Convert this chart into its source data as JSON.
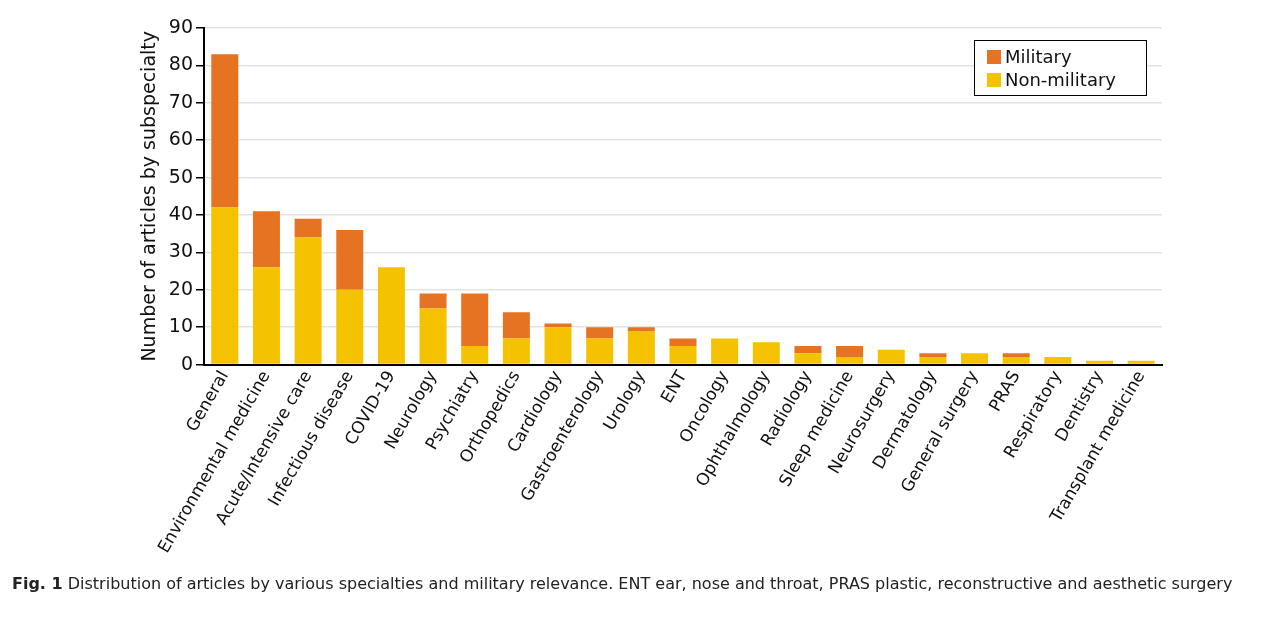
{
  "chart_data": {
    "type": "bar",
    "stacked": true,
    "ylabel": "Number of articles by subspecialty",
    "categories": [
      "General",
      "Environmental medicine",
      "Acute/Intensive care",
      "Infectious disease",
      "COVID-19",
      "Neurology",
      "Psychiatry",
      "Orthopedics",
      "Cardiology",
      "Gastroenterology",
      "Urology",
      "ENT",
      "Oncology",
      "Ophthalmology",
      "Radiology",
      "Sleep medicine",
      "Neurosurgery",
      "Dermatology",
      "General surgery",
      "PRAS",
      "Respiratory",
      "Dentistry",
      "Transplant medicine"
    ],
    "series": [
      {
        "name": "Non-military",
        "color": "#f5c200",
        "values": [
          42,
          26,
          34,
          20,
          26,
          15,
          5,
          7,
          10,
          7,
          9,
          5,
          7,
          6,
          3,
          2,
          4,
          2,
          3,
          2,
          2,
          1,
          1
        ]
      },
      {
        "name": "Military",
        "color": "#e57322",
        "values": [
          41,
          15,
          5,
          16,
          0,
          4,
          14,
          7,
          1,
          3,
          1,
          2,
          0,
          0,
          2,
          3,
          0,
          1,
          0,
          1,
          0,
          0,
          0
        ]
      }
    ],
    "ylim": [
      0,
      90
    ],
    "yticks": [
      0,
      10,
      20,
      30,
      40,
      50,
      60,
      70,
      80,
      90
    ],
    "grid": "y",
    "legend": "top right",
    "annotations": [
      "Fig. 1  Distribution of articles by various specialties and military relevance. ENT ear, nose and throat, PRAS plastic, reconstructive and aesthetic surgery"
    ]
  }
}
